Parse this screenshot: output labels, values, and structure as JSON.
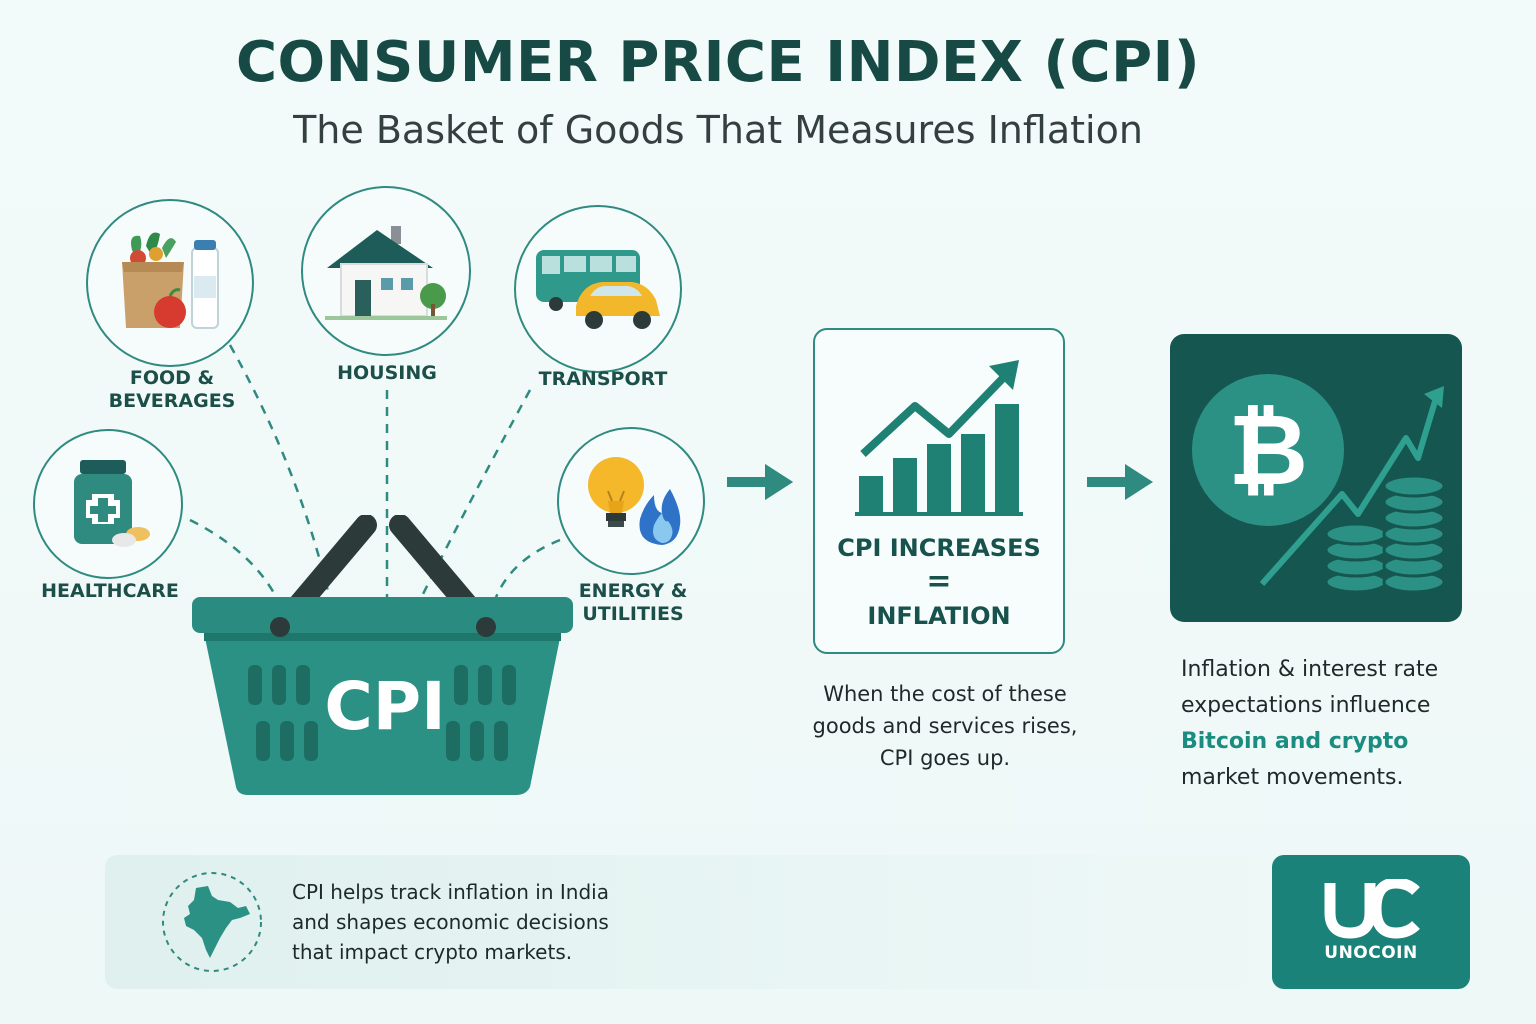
{
  "header": {
    "title": "CONSUMER PRICE INDEX (CPI)",
    "subtitle": "The Basket of Goods That Measures Inflation"
  },
  "categories": {
    "food": "FOOD &\nBEVERAGES",
    "housing": "HOUSING",
    "transport": "TRANSPORT",
    "healthcare": "HEALTHCARE",
    "energy": "ENERGY &\nUTILITIES"
  },
  "basket": {
    "label": "CPI"
  },
  "inflation_box": {
    "line1": "CPI INCREASES",
    "equals": "=",
    "line2": "INFLATION"
  },
  "inflation_desc": {
    "l1": "When the cost of these",
    "l2": "goods and services rises,",
    "l3": "CPI goes up."
  },
  "crypto_desc": {
    "l1": "Inflation & interest rate",
    "l2": "expectations influence",
    "l3": "Bitcoin and crypto",
    "l4": "market movements."
  },
  "footer": {
    "l1": "CPI helps track inflation in India",
    "l2": "and shapes economic decisions",
    "l3": "that impact crypto markets."
  },
  "logo": {
    "name": "UNOCOIN"
  },
  "colors": {
    "teal": "#1a8278",
    "dark_teal": "#165650",
    "accent": "#1b8c80"
  }
}
